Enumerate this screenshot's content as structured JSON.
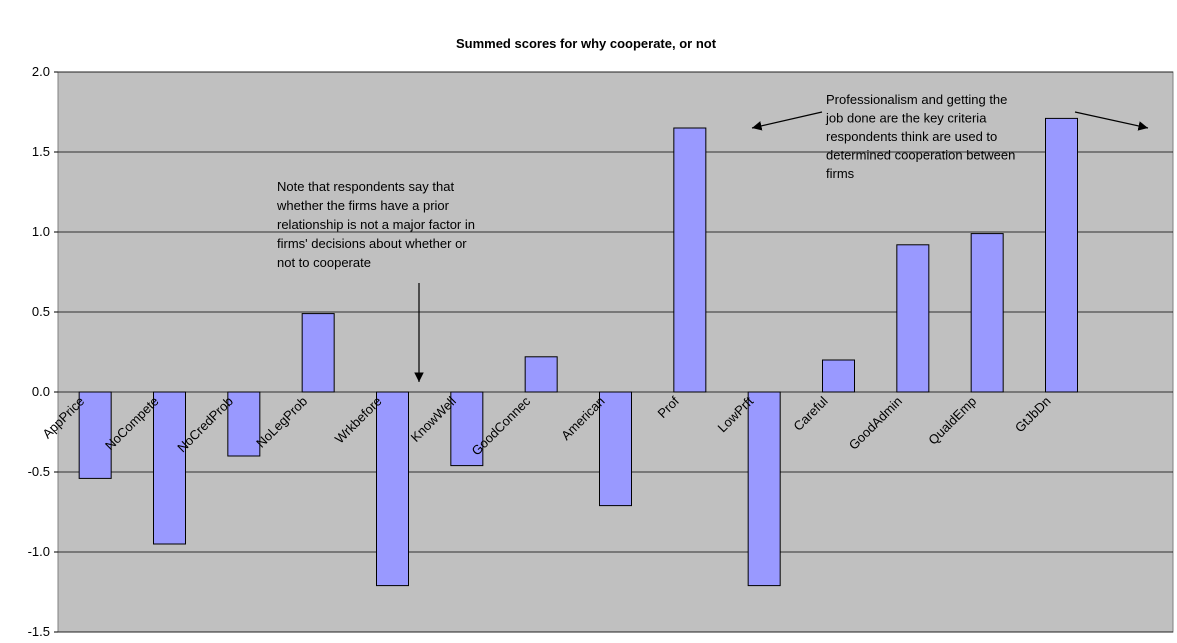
{
  "chart_data": {
    "type": "bar",
    "title": "Summed scores for why cooperate, or not",
    "categories": [
      "AppPrice",
      "NoCompete",
      "NoCredProb",
      "NoLegProb",
      "Wrkbefore",
      "KnowWell",
      "GoodConnec",
      "American",
      "Prof",
      "LowPrft",
      "Careful",
      "GoodAdmin",
      "QualdEmp",
      "GtJbDn"
    ],
    "values": [
      -0.54,
      -0.95,
      -0.4,
      0.49,
      -1.21,
      -0.46,
      0.22,
      -0.71,
      1.65,
      -1.21,
      0.2,
      0.92,
      0.99,
      1.71
    ],
    "color": "#9999ff",
    "ylim": [
      -1.5,
      2.0
    ],
    "yticks": [
      {
        "value": -1.5,
        "label": "-1.5"
      },
      {
        "value": -1.0,
        "label": "-1.0"
      },
      {
        "value": -0.5,
        "label": "-0.5"
      },
      {
        "value": 0,
        "label": "0.0"
      },
      {
        "value": 0.5,
        "label": "0.5"
      },
      {
        "value": 1.0,
        "label": "1.0"
      },
      {
        "value": 1.5,
        "label": "1.5"
      },
      {
        "value": 2.0,
        "label": "2.0"
      }
    ],
    "grid": true,
    "annotations": [
      {
        "lines": [
          "Note that respondents say that",
          "whether the firms have a prior",
          "relationship is not a major factor in",
          "firms' decisions about whether or",
          "not to cooperate"
        ]
      },
      {
        "lines": [
          "Professionalism and getting the",
          "job done are the key criteria",
          "respondents think are used to",
          "determined cooperation between",
          "firms"
        ]
      }
    ]
  }
}
